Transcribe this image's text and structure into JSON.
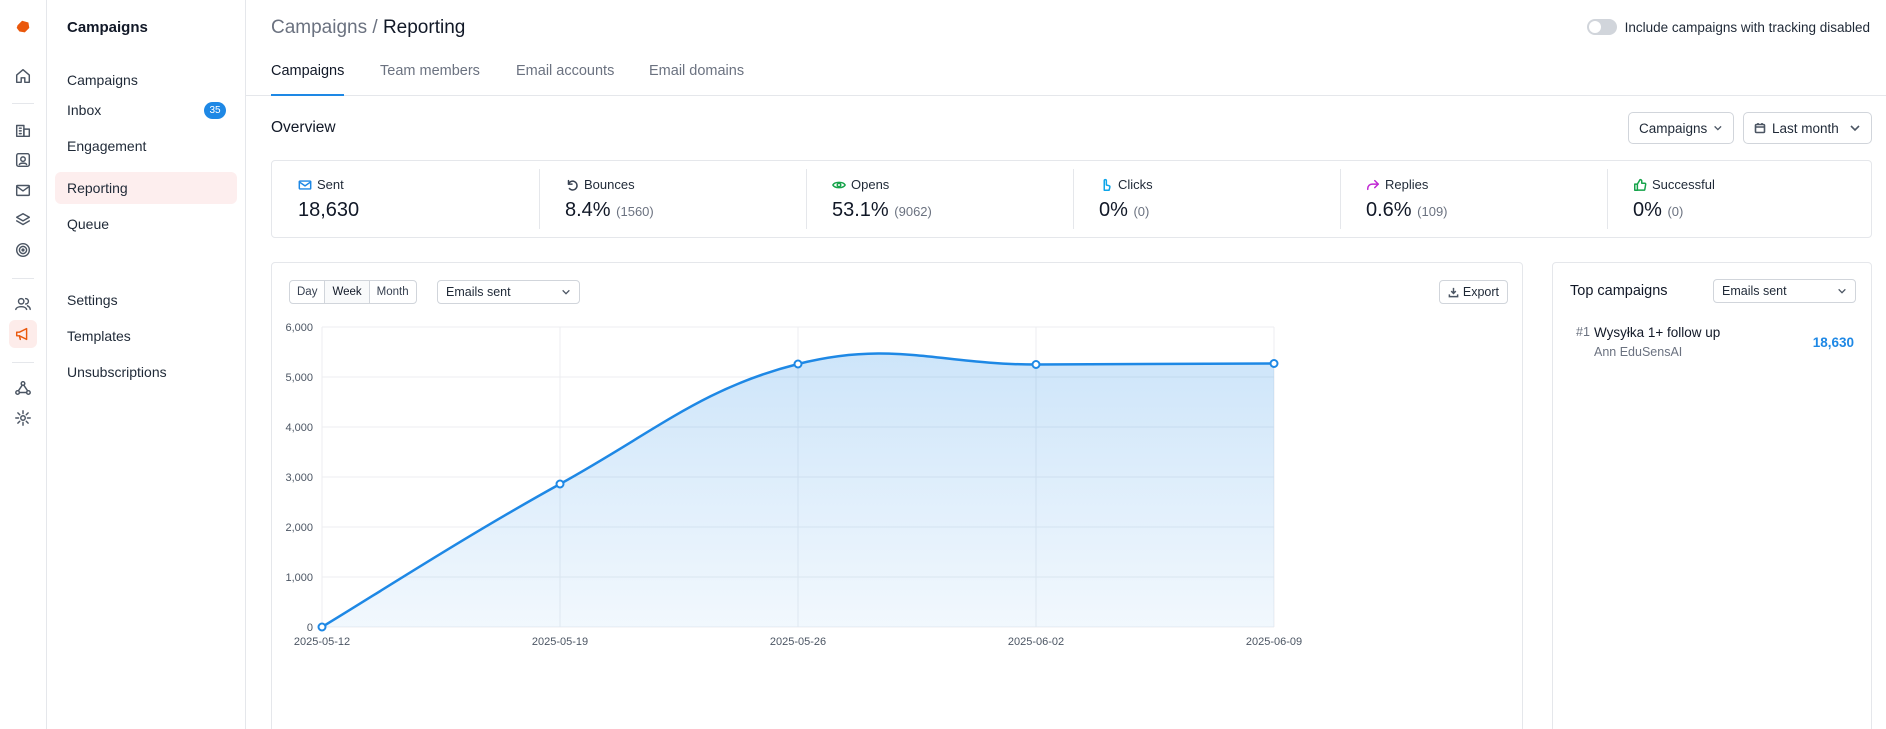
{
  "sidebar": {
    "title": "Campaigns",
    "items": [
      {
        "label": "Campaigns"
      },
      {
        "label": "Inbox",
        "badge": "35"
      },
      {
        "label": "Engagement"
      },
      {
        "label": "Reporting",
        "active": true
      },
      {
        "label": "Queue"
      },
      {
        "label": "Settings"
      },
      {
        "label": "Templates"
      },
      {
        "label": "Unsubscriptions"
      }
    ]
  },
  "header": {
    "crumb_parent": "Campaigns",
    "crumb_sep": " / ",
    "crumb_current": "Reporting",
    "toggle_label": "Include campaigns with tracking disabled",
    "toggle_on": false
  },
  "tabs": [
    {
      "label": "Campaigns",
      "active": true
    },
    {
      "label": "Team members"
    },
    {
      "label": "Email accounts"
    },
    {
      "label": "Email domains"
    }
  ],
  "overview": {
    "title": "Overview",
    "filter_type": "Campaigns",
    "filter_period": "Last month"
  },
  "stats": [
    {
      "label": "Sent",
      "icon": "mail-icon",
      "color": "#1e88e5",
      "value": "18,630",
      "sub": ""
    },
    {
      "label": "Bounces",
      "icon": "bounce-icon",
      "color": "#374151",
      "value": "8.4%",
      "sub": "(1560)"
    },
    {
      "label": "Opens",
      "icon": "eye-icon",
      "color": "#16a34a",
      "value": "53.1%",
      "sub": "(9062)"
    },
    {
      "label": "Clicks",
      "icon": "pointer-icon",
      "color": "#0ea5e9",
      "value": "0%",
      "sub": "(0)"
    },
    {
      "label": "Replies",
      "icon": "reply-icon",
      "color": "#c026d3",
      "value": "0.6%",
      "sub": "(109)"
    },
    {
      "label": "Successful",
      "icon": "thumbs-up-icon",
      "color": "#16a34a",
      "value": "0%",
      "sub": "(0)"
    }
  ],
  "chart_controls": {
    "granularity": [
      "Day",
      "Week",
      "Month"
    ],
    "selected_granularity": "Week",
    "metric": "Emails sent",
    "export_label": "Export"
  },
  "chart_data": {
    "type": "area",
    "x": [
      "2025-05-12",
      "2025-05-19",
      "2025-05-26",
      "2025-06-02",
      "2025-06-09"
    ],
    "series": [
      {
        "values": [
          0,
          2860,
          5260,
          5250,
          5270
        ]
      }
    ],
    "title": "",
    "xlabel": "",
    "ylabel": "",
    "ylim": [
      0,
      6000
    ],
    "yticks": [
      "0",
      "1,000",
      "2,000",
      "3,000",
      "4,000",
      "5,000",
      "6,000"
    ],
    "grid": true,
    "color": "#1e88e5"
  },
  "top_campaigns": {
    "title": "Top campaigns",
    "metric": "Emails sent",
    "items": [
      {
        "rank": "#1",
        "name": "Wysyłka 1+ follow up",
        "owner": "Ann EduSensAI",
        "value": "18,630"
      }
    ]
  }
}
